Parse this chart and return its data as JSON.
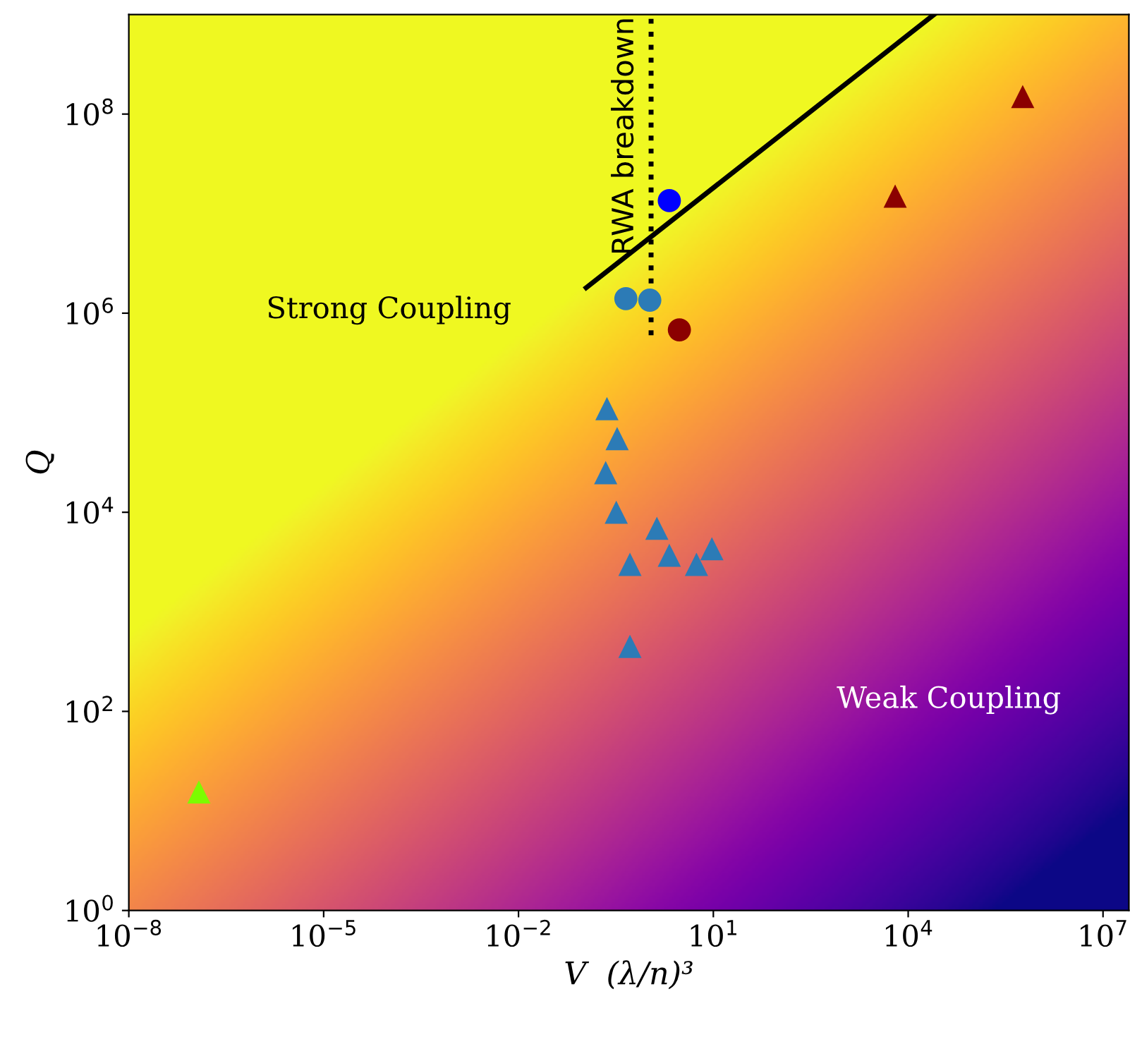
{
  "chart_data": {
    "type": "scatter",
    "xlabel": "V  (λ/n)³",
    "ylabel": "Q",
    "log": "xy",
    "grid": false,
    "legend": false,
    "xlim": [
      1e-08,
      25000000.0
    ],
    "ylim": [
      1,
      1000000000.0
    ],
    "xticks": [
      {
        "value": 1e-08,
        "label": "10$^{−8}$"
      },
      {
        "value": 1e-05,
        "label": "10$^{−5}$"
      },
      {
        "value": 0.01,
        "label": "10$^{−2}$"
      },
      {
        "value": 10,
        "label": "10$^{1}$"
      },
      {
        "value": 10000,
        "label": "10$^{4}$"
      },
      {
        "value": 10000000.0,
        "label": "10$^{7}$"
      }
    ],
    "yticks": [
      {
        "value": 1,
        "label": "10$^{0}$"
      },
      {
        "value": 100,
        "label": "10$^{2}$"
      },
      {
        "value": 10000,
        "label": "10$^{4}$"
      },
      {
        "value": 1000000.0,
        "label": "10$^{6}$"
      },
      {
        "value": 100000000.0,
        "label": "10$^{8}$"
      }
    ],
    "series": [
      {
        "type": "scatter",
        "marker": "triangle",
        "color": "#2c7bb6",
        "x": [
          0.23,
          0.33,
          0.22,
          0.32,
          0.52,
          0.52,
          1.35,
          2.1,
          5.5,
          9.5
        ],
        "values": [
          110000,
          55000,
          25000,
          10000,
          3000,
          450,
          6900,
          3700,
          3000,
          4300
        ]
      },
      {
        "type": "scatter",
        "marker": "circle",
        "color": "#2c7bb6",
        "x": [
          0.45,
          1.05
        ],
        "values": [
          1400000,
          1350000
        ]
      },
      {
        "type": "scatter",
        "marker": "circle",
        "color": "#0000ff",
        "x": [
          2.1
        ],
        "values": [
          13500000
        ]
      },
      {
        "type": "scatter",
        "marker": "circle",
        "color": "#8b0000",
        "x": [
          3.0
        ],
        "values": [
          680000
        ]
      },
      {
        "type": "scatter",
        "marker": "triangle",
        "color": "#8b0000",
        "x": [
          6300,
          580000
        ],
        "values": [
          15000000,
          150000000
        ]
      },
      {
        "type": "scatter",
        "marker": "triangle",
        "color": "#7cfc00",
        "x": [
          1.2e-07
        ],
        "values": [
          15.5
        ]
      },
      {
        "type": "line",
        "line_style": "solid",
        "color": "#000000",
        "x": [
          0.11,
          25000
        ],
        "values": [
          1800000,
          1000000000.0
        ]
      },
      {
        "type": "line",
        "line_style": "dotted",
        "color": "#000000",
        "x": [
          1.1,
          1.1
        ],
        "values": [
          600000,
          1000000000.0
        ]
      }
    ],
    "annotations": [
      "Strong Coupling",
      "Weak Coupling",
      {
        "text": "RWA breakdown",
        "x": 1.1,
        "y": 60000000
      }
    ]
  }
}
